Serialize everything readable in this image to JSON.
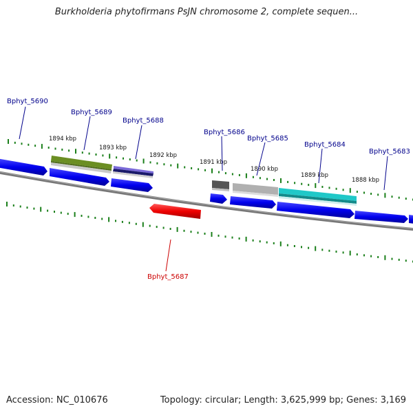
{
  "title": "Burkholderia phytofirmans PsJN chromosome 2, complete sequen...",
  "footer": {
    "accession": "Accession: NC_010676",
    "summary": "Topology: circular; Length: 3,625,999 bp; Genes: 3,169"
  },
  "colors": {
    "forward_gene": "#0000ee",
    "reverse_gene": "#ee0000",
    "backbone": "#777777",
    "ticks": "#1a7f1a",
    "label_forward": "#00008b",
    "label_reverse": "#cc0000",
    "feature_olive": "#6b8e23",
    "feature_slate": "#6a5acd",
    "feature_darkgray": "#555555",
    "feature_silver": "#b0b0b0",
    "feature_cyan": "#20c8c8"
  },
  "kbp_labels": [
    "1894 kbp",
    "1893 kbp",
    "1892 kbp",
    "1891 kbp",
    "1890 kbp",
    "1889 kbp",
    "1888 kbp"
  ],
  "gene_labels": [
    {
      "name": "Bphyt_5690",
      "strand": "forward"
    },
    {
      "name": "Bphyt_5689",
      "strand": "forward"
    },
    {
      "name": "Bphyt_5688",
      "strand": "forward"
    },
    {
      "name": "Bphyt_5686",
      "strand": "forward"
    },
    {
      "name": "Bphyt_5685",
      "strand": "forward"
    },
    {
      "name": "Bphyt_5684",
      "strand": "forward"
    },
    {
      "name": "Bphyt_5683",
      "strand": "forward"
    },
    {
      "name": "Bphyt_5687",
      "strand": "reverse"
    }
  ]
}
